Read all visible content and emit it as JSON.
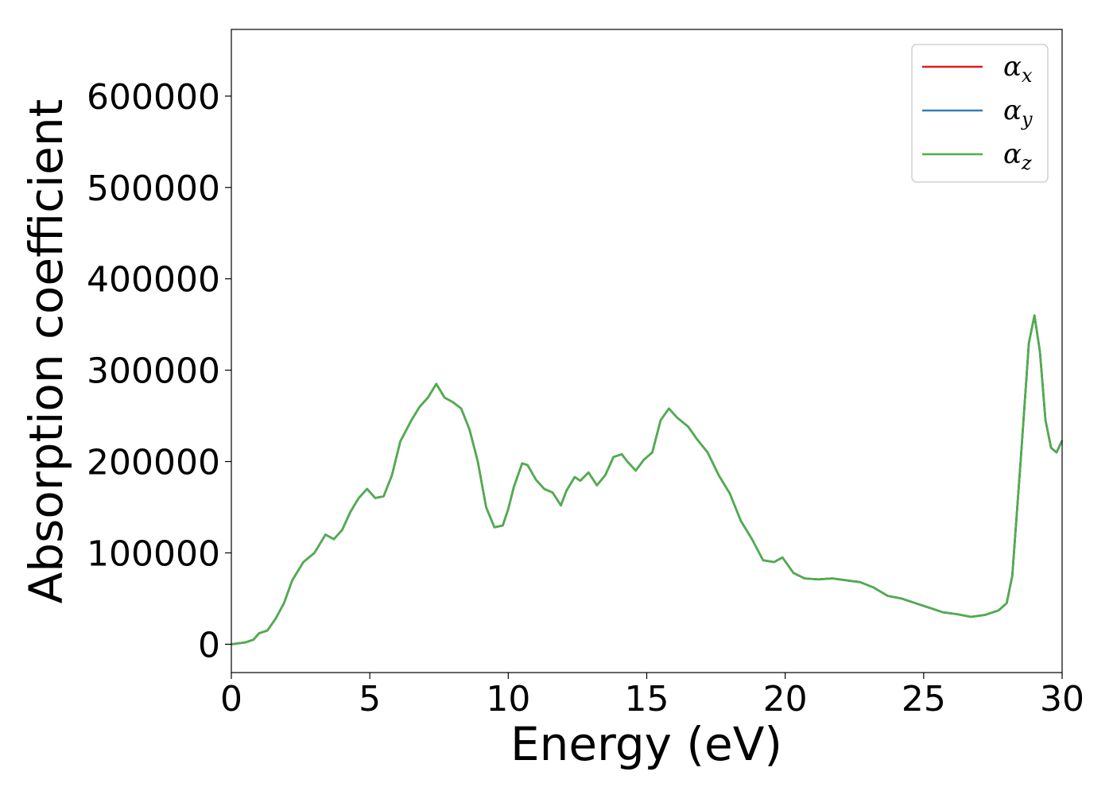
{
  "chart_data": {
    "type": "line",
    "xlabel": "Energy (eV)",
    "ylabel": "Absorption coefficient",
    "xlim": [
      0,
      30
    ],
    "ylim": [
      -31000,
      673000
    ],
    "x_ticks": [
      0,
      5,
      10,
      15,
      20,
      25,
      30
    ],
    "y_ticks": [
      0,
      100000,
      200000,
      300000,
      400000,
      500000,
      600000
    ],
    "grid": false,
    "legend_position": "top-right",
    "x": [
      0,
      0.5,
      0.8,
      1.0,
      1.3,
      1.6,
      1.9,
      2.2,
      2.6,
      3.0,
      3.4,
      3.7,
      4.0,
      4.3,
      4.6,
      4.9,
      5.2,
      5.5,
      5.8,
      6.1,
      6.5,
      6.8,
      7.1,
      7.4,
      7.7,
      8.0,
      8.3,
      8.6,
      8.9,
      9.2,
      9.5,
      9.8,
      10.0,
      10.2,
      10.5,
      10.7,
      11.0,
      11.3,
      11.6,
      11.9,
      12.1,
      12.4,
      12.6,
      12.9,
      13.2,
      13.5,
      13.8,
      14.1,
      14.3,
      14.6,
      14.9,
      15.2,
      15.5,
      15.8,
      16.1,
      16.5,
      16.8,
      17.2,
      17.6,
      18.0,
      18.4,
      18.8,
      19.2,
      19.6,
      19.9,
      20.3,
      20.7,
      21.2,
      21.7,
      22.2,
      22.7,
      23.2,
      23.7,
      24.2,
      24.7,
      25.2,
      25.7,
      26.2,
      26.7,
      27.2,
      27.7,
      28.0,
      28.2,
      28.5,
      28.8,
      29.0,
      29.2,
      29.4,
      29.6,
      29.8,
      30.0
    ],
    "series": [
      {
        "name": "α_x",
        "values": [
          0,
          2000,
          5000,
          12000,
          15000,
          28000,
          45000,
          70000,
          90000,
          100000,
          120000,
          115000,
          125000,
          145000,
          160000,
          170000,
          160000,
          162000,
          185000,
          222000,
          245000,
          260000,
          270000,
          285000,
          270000,
          265000,
          258000,
          235000,
          200000,
          150000,
          128000,
          130000,
          148000,
          172000,
          198000,
          196000,
          180000,
          170000,
          166000,
          152000,
          168000,
          183000,
          179000,
          188000,
          174000,
          185000,
          205000,
          208000,
          200000,
          190000,
          202000,
          210000,
          245000,
          258000,
          248000,
          238000,
          225000,
          210000,
          185000,
          165000,
          135000,
          115000,
          92000,
          90000,
          95000,
          78000,
          72000,
          71000,
          72000,
          70000,
          68000,
          62000,
          53000,
          50000,
          45000,
          40000,
          35000,
          33000,
          30000,
          32000,
          37000,
          45000,
          75000,
          200000,
          330000,
          360000,
          320000,
          245000,
          215000,
          210000,
          223000
        ]
      },
      {
        "name": "α_y",
        "values": [
          0,
          2000,
          5000,
          12000,
          15000,
          28000,
          45000,
          70000,
          90000,
          100000,
          120000,
          115000,
          125000,
          145000,
          160000,
          170000,
          160000,
          162000,
          185000,
          222000,
          245000,
          260000,
          270000,
          285000,
          270000,
          265000,
          258000,
          235000,
          200000,
          150000,
          128000,
          130000,
          148000,
          172000,
          198000,
          196000,
          180000,
          170000,
          166000,
          152000,
          168000,
          183000,
          179000,
          188000,
          174000,
          185000,
          205000,
          208000,
          200000,
          190000,
          202000,
          210000,
          245000,
          258000,
          248000,
          238000,
          225000,
          210000,
          185000,
          165000,
          135000,
          115000,
          92000,
          90000,
          95000,
          78000,
          72000,
          71000,
          72000,
          70000,
          68000,
          62000,
          53000,
          50000,
          45000,
          40000,
          35000,
          33000,
          30000,
          32000,
          37000,
          45000,
          75000,
          200000,
          330000,
          360000,
          320000,
          245000,
          215000,
          210000,
          223000
        ]
      },
      {
        "name": "α_z",
        "values": [
          0,
          2000,
          5000,
          12000,
          15000,
          28000,
          45000,
          70000,
          90000,
          100000,
          120000,
          115000,
          125000,
          145000,
          160000,
          170000,
          160000,
          162000,
          185000,
          222000,
          245000,
          260000,
          270000,
          285000,
          270000,
          265000,
          258000,
          235000,
          200000,
          150000,
          128000,
          130000,
          148000,
          172000,
          198000,
          196000,
          180000,
          170000,
          166000,
          152000,
          168000,
          183000,
          179000,
          188000,
          174000,
          185000,
          205000,
          208000,
          200000,
          190000,
          202000,
          210000,
          245000,
          258000,
          248000,
          238000,
          225000,
          210000,
          185000,
          165000,
          135000,
          115000,
          92000,
          90000,
          95000,
          78000,
          72000,
          71000,
          72000,
          70000,
          68000,
          62000,
          53000,
          50000,
          45000,
          40000,
          35000,
          33000,
          30000,
          32000,
          37000,
          45000,
          75000,
          200000,
          330000,
          360000,
          320000,
          245000,
          215000,
          210000,
          223000
        ]
      }
    ],
    "legend": [
      {
        "base": "α",
        "sub": "x"
      },
      {
        "base": "α",
        "sub": "y"
      },
      {
        "base": "α",
        "sub": "z"
      }
    ],
    "colors": [
      "#e41a1c",
      "#377eb8",
      "#4daf4a"
    ]
  }
}
